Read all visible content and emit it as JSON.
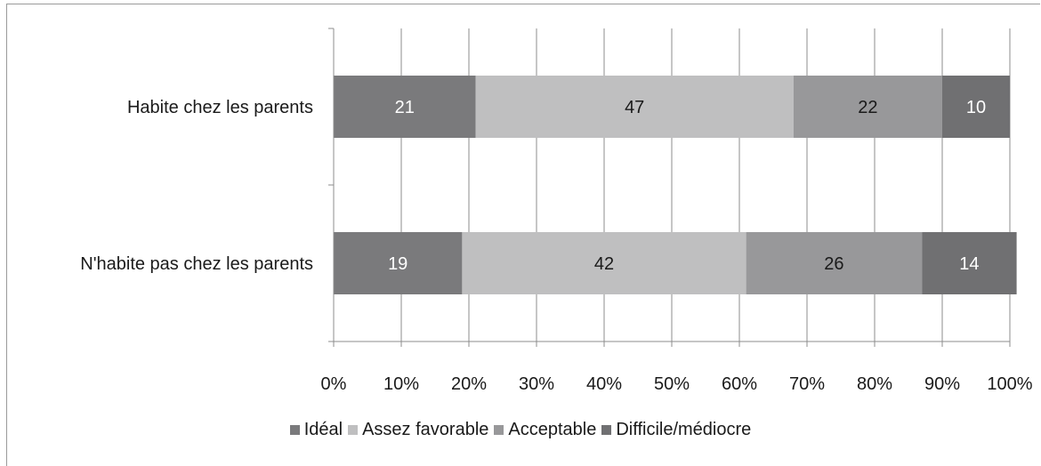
{
  "chart_data": {
    "type": "bar",
    "orientation": "horizontal",
    "stacked": "percent",
    "categories": [
      "Habite chez les parents",
      "N'habite pas chez les parents"
    ],
    "series": [
      {
        "name": "Idéal",
        "values": [
          21,
          19
        ],
        "color": "#7a7a7c"
      },
      {
        "name": "Assez favorable",
        "values": [
          47,
          42
        ],
        "color": "#bfbfc0"
      },
      {
        "name": "Acceptable",
        "values": [
          22,
          26
        ],
        "color": "#98989a"
      },
      {
        "name": "Difficile/médiocre",
        "values": [
          10,
          14
        ],
        "color": "#707072"
      }
    ],
    "label_colors": [
      "#ffffff",
      "#1a1a1a",
      "#1a1a1a",
      "#ffffff"
    ],
    "xticks": [
      "0%",
      "10%",
      "20%",
      "30%",
      "40%",
      "50%",
      "60%",
      "70%",
      "80%",
      "90%",
      "100%"
    ],
    "xlim": [
      0,
      100
    ],
    "grid": true,
    "legend_position": "bottom"
  }
}
